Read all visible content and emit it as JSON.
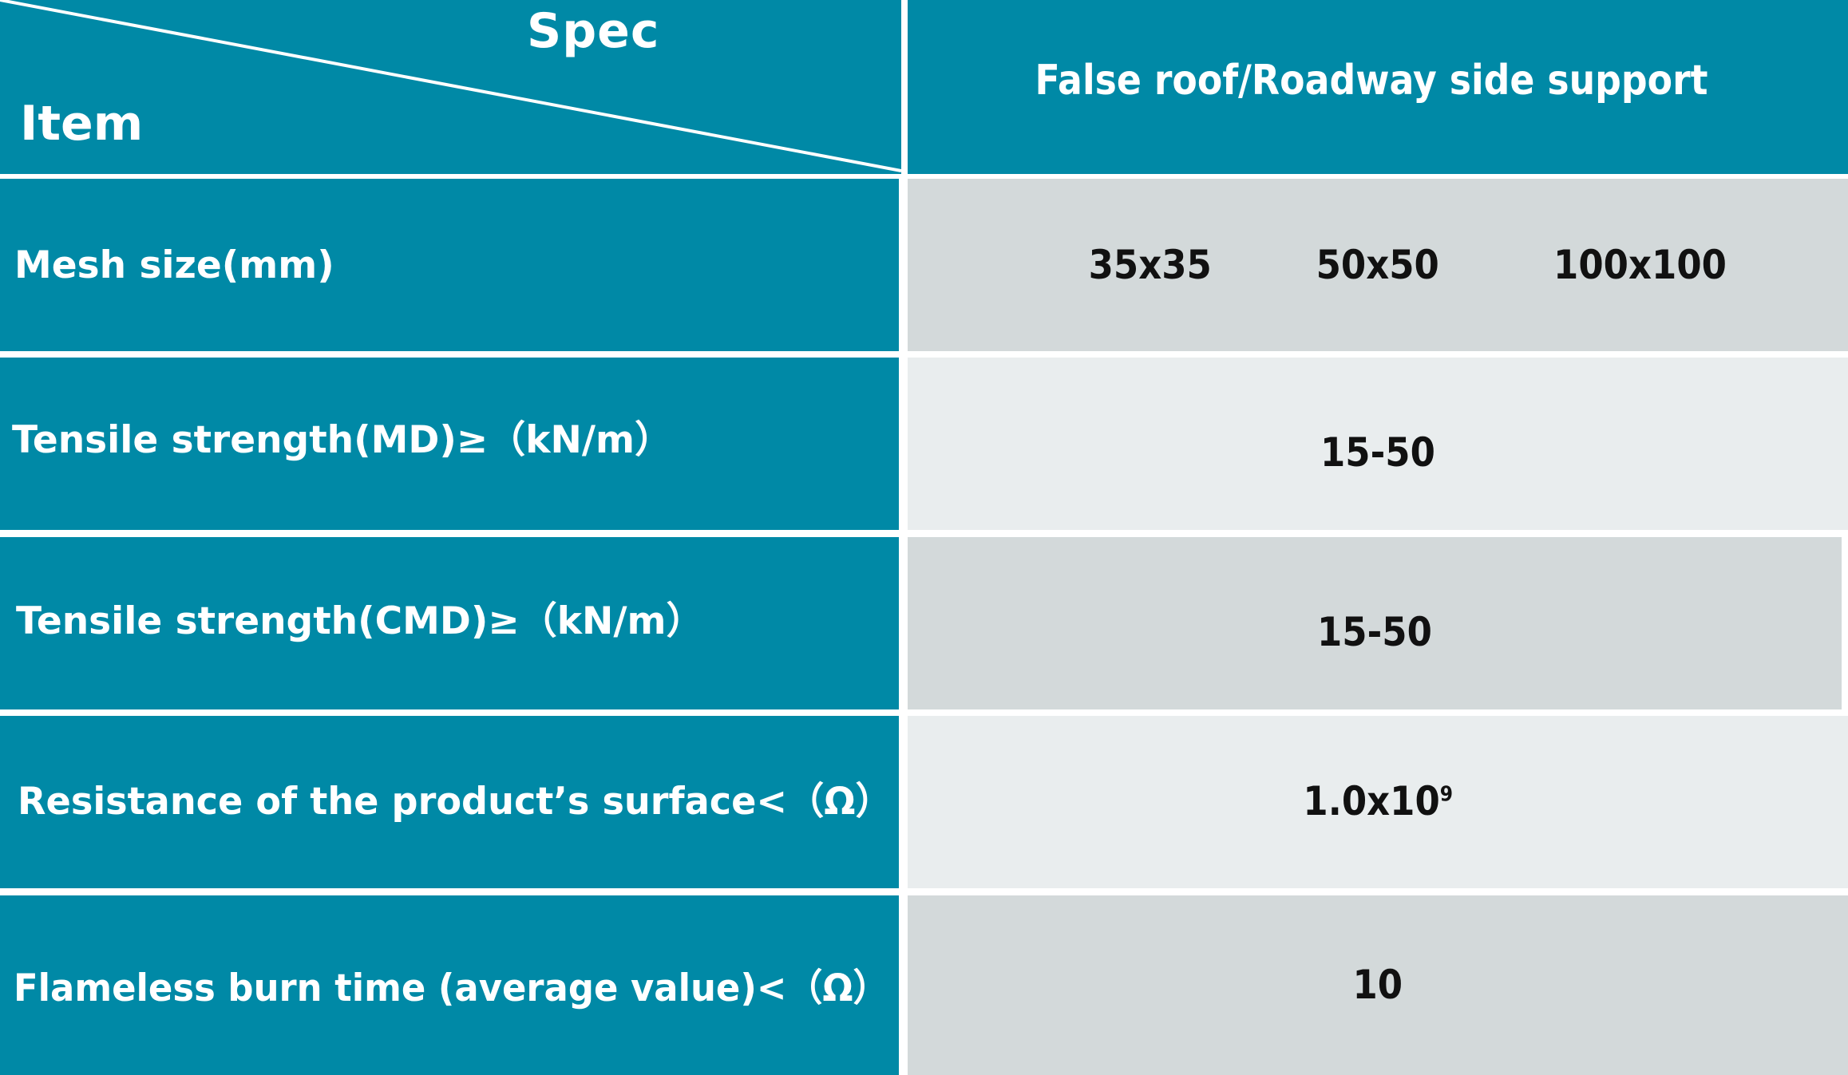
{
  "header": {
    "spec_label": "Spec",
    "item_label": "Item",
    "column_title": "False roof/Roadway side support"
  },
  "rows": [
    {
      "label": "Mesh size(mm)",
      "values": [
        "35x35",
        "50x50",
        "100x100"
      ]
    },
    {
      "label": "Tensile strength(MD)≥（kN/m）",
      "value": "15-50"
    },
    {
      "label": "Tensile strength(CMD)≥（kN/m）",
      "value": "15-50"
    },
    {
      "label": "Resistance of the product’s surface<（Ω）",
      "value_base": "1.0x10",
      "value_exp": "9"
    },
    {
      "label": "Flameless burn time (average value)<（Ω）",
      "value": "10"
    }
  ],
  "colors": {
    "teal": "#0089a6",
    "row_dark": "#d3d9da",
    "row_light": "#e9edee",
    "text_dark": "#111111",
    "text_light": "#ffffff"
  }
}
